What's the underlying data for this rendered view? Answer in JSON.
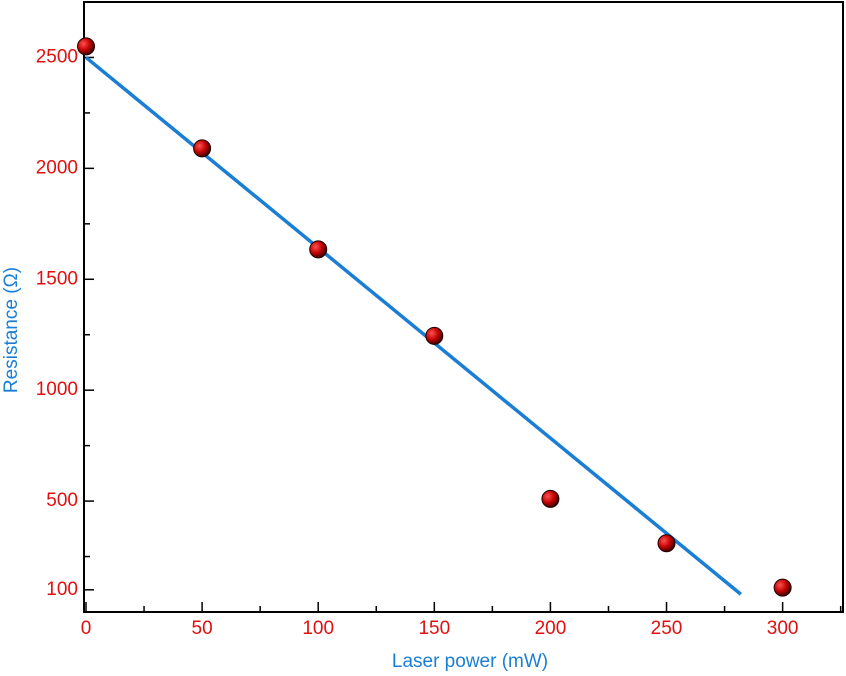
{
  "chart_data": {
    "type": "scatter",
    "x_label": "Laser power (mW)",
    "y_label": "Resistance (Ω)",
    "series": [
      {
        "x": [
          0,
          50,
          100,
          150,
          200,
          250,
          300
        ],
        "values": [
          2550,
          2090,
          1635,
          1245,
          510,
          310,
          110
        ],
        "color": "#d00000"
      }
    ],
    "fit": {
      "x": [
        0,
        282
      ],
      "values": [
        2500,
        80
      ],
      "color": "#1a7fd4"
    },
    "xlim": [
      0,
      326
    ],
    "ylim": [
      0,
      2750
    ],
    "xticks": [
      0,
      50,
      100,
      150,
      200,
      250,
      300
    ],
    "yticks": [
      100,
      500,
      1000,
      1500,
      2000,
      2500
    ],
    "xminorticks": [
      25,
      75,
      125,
      175,
      225,
      275,
      325
    ],
    "yminorticks": [
      250,
      750,
      1250,
      1750,
      2250
    ],
    "tick_label_color": "#e01010",
    "axis_label_color": "#1a7fd4"
  }
}
